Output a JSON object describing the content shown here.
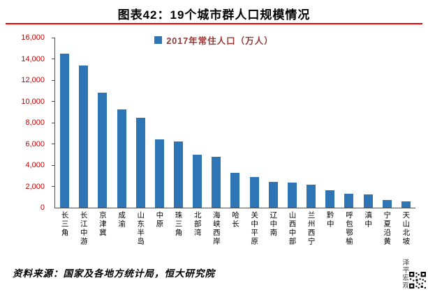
{
  "title": "图表42：19个城市群人口规模情况",
  "footer": {
    "source": "资料来源：国家及各地方统计局，恒大研究院",
    "brand": "泽平宏观"
  },
  "chart_data": {
    "type": "bar",
    "title": "图表42：19个城市群人口规模情况",
    "legend": "2017年常住人口（万人）",
    "legend_position": "top-center",
    "grid": false,
    "categories": [
      "长三角",
      "长江中游",
      "京津冀",
      "成渝",
      "山东半岛",
      "中原",
      "珠三角",
      "北部湾",
      "海峡西岸",
      "哈长",
      "关中平原",
      "辽中南",
      "山西中部",
      "兰州西宁",
      "黔中",
      "呼包鄂榆",
      "滇中",
      "宁夏沿黄",
      "天山北坡"
    ],
    "values": [
      14500,
      13350,
      10850,
      9250,
      8450,
      6400,
      6200,
      5000,
      4800,
      3300,
      2900,
      2450,
      2350,
      2150,
      1650,
      1300,
      1250,
      700,
      600
    ],
    "xlabel": "",
    "ylabel": "",
    "ylim": [
      0,
      16000
    ],
    "ytick_step": 2000,
    "yticks": [
      "0",
      "2,000",
      "4,000",
      "6,000",
      "8,000",
      "10,000",
      "12,000",
      "14,000",
      "16,000"
    ],
    "colors": {
      "bar": "#2E75B6",
      "axis_labels": "#C00000",
      "legend_text": "#953735",
      "title_rule": "#EE0000"
    }
  }
}
